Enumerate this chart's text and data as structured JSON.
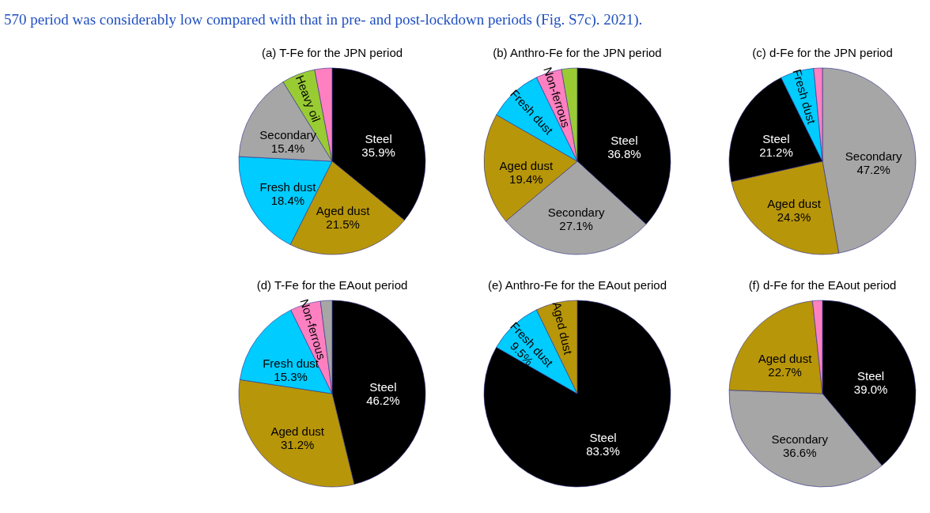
{
  "chart_data": [
    {
      "type": "pie",
      "title": "(a) T-Fe for the JPN period",
      "categories": [
        "Steel",
        "Aged dust",
        "Fresh dust",
        "Secondary",
        "Heavy oil",
        null
      ],
      "values": [
        35.9,
        21.5,
        18.4,
        15.4,
        5.8,
        3.0
      ],
      "colors": [
        "#000000",
        "#b8960a",
        "#00ccff",
        "#a6a6a6",
        "#99cc33",
        "#ff80c0"
      ],
      "value_labels": [
        "35.9%",
        "21.5%",
        "18.4%",
        "15.4%",
        null,
        null
      ],
      "annotations": [
        "570 period was considerably low compared with that in pre- and post-lockdown periods (Fig. S7c). 2021)."
      ]
    },
    {
      "type": "pie",
      "title": "(b) Anthro-Fe for the JPN period",
      "categories": [
        "Steel",
        "Secondary",
        "Aged dust",
        "Fresh dust",
        "Non-ferrous",
        null
      ],
      "values": [
        36.8,
        27.1,
        19.4,
        9.5,
        4.5,
        2.7
      ],
      "colors": [
        "#000000",
        "#a6a6a6",
        "#b8960a",
        "#00ccff",
        "#ff80c0",
        "#99cc33"
      ],
      "value_labels": [
        "36.8%",
        "27.1%",
        "19.4%",
        null,
        null,
        null
      ]
    },
    {
      "type": "pie",
      "title": "(c) d-Fe for the JPN period",
      "categories": [
        "Secondary",
        "Aged dust",
        "Steel",
        "Fresh dust",
        null
      ],
      "values": [
        47.2,
        24.3,
        21.2,
        5.8,
        1.5
      ],
      "colors": [
        "#a6a6a6",
        "#b8960a",
        "#000000",
        "#00ccff",
        "#ff80c0"
      ],
      "value_labels": [
        "47.2%",
        "24.3%",
        "21.2%",
        null,
        null
      ]
    },
    {
      "type": "pie",
      "title": "(d) T-Fe for the EAout period",
      "categories": [
        "Steel",
        "Aged dust",
        "Fresh dust",
        "Non-ferrous",
        null
      ],
      "values": [
        46.2,
        31.2,
        15.3,
        5.3,
        2.0
      ],
      "colors": [
        "#000000",
        "#b8960a",
        "#00ccff",
        "#ff80c0",
        "#a6a6a6"
      ],
      "value_labels": [
        "46.2%",
        "31.2%",
        "15.3%",
        null,
        null
      ]
    },
    {
      "type": "pie",
      "title": "(e) Anthro-Fe for the EAout period",
      "categories": [
        "Steel",
        "Fresh dust",
        "Aged dust"
      ],
      "values": [
        83.3,
        9.5,
        7.2
      ],
      "colors": [
        "#000000",
        "#00ccff",
        "#b8960a"
      ],
      "value_labels": [
        "83.3%",
        "9.5%",
        null
      ]
    },
    {
      "type": "pie",
      "title": "(f) d-Fe for the EAout period",
      "categories": [
        "Steel",
        "Secondary",
        "Aged dust",
        null
      ],
      "values": [
        39.0,
        36.6,
        22.7,
        1.7
      ],
      "colors": [
        "#000000",
        "#a6a6a6",
        "#b8960a",
        "#ff80c0"
      ],
      "value_labels": [
        "39.0%",
        "36.6%",
        "22.7%",
        null
      ]
    }
  ]
}
